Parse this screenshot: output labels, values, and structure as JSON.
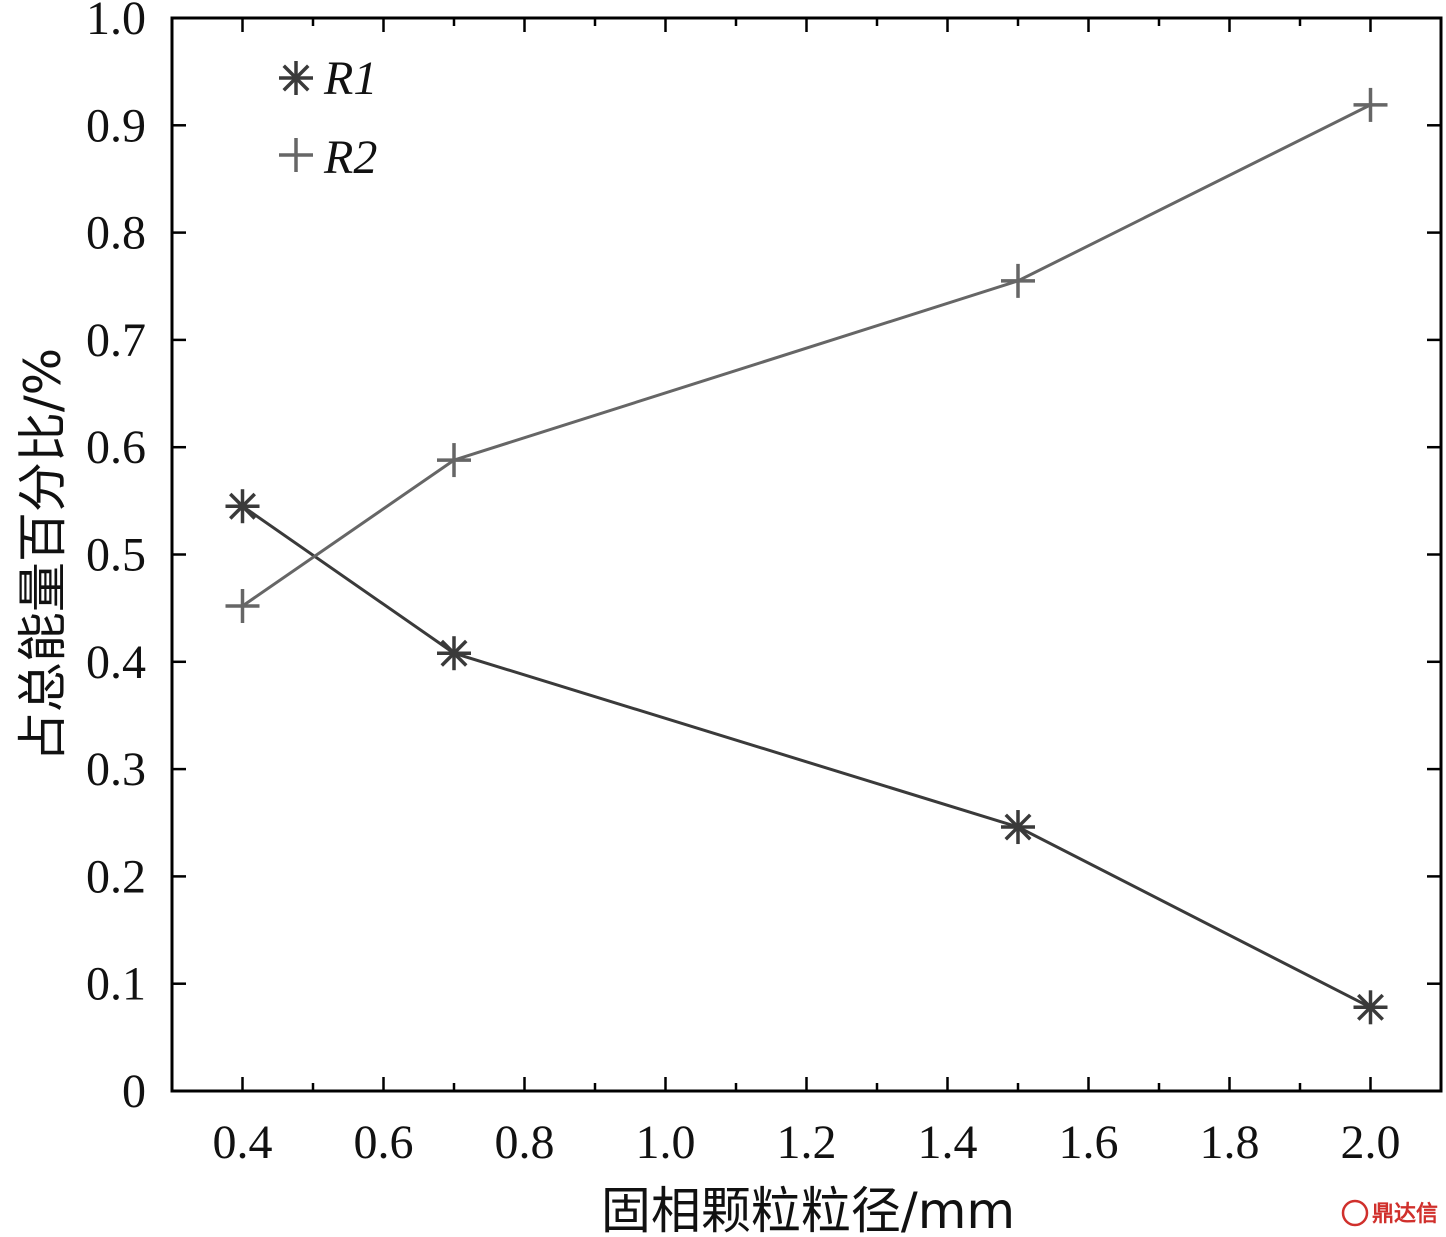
{
  "chart_data": {
    "type": "line",
    "xlabel": "固相颗粒粒径/mm",
    "ylabel": "占总能量百分比/%",
    "xlim": [
      0.3,
      2.1
    ],
    "ylim": [
      0,
      1.0
    ],
    "x_ticks": [
      "0.4",
      "0.6",
      "0.8",
      "1.0",
      "1.2",
      "1.4",
      "1.6",
      "1.8",
      "2.0"
    ],
    "y_ticks": [
      "0",
      "0.1",
      "0.2",
      "0.3",
      "0.4",
      "0.5",
      "0.6",
      "0.7",
      "0.8",
      "0.9",
      "1.0"
    ],
    "x": [
      0.4,
      0.7,
      1.5,
      2.0
    ],
    "series": [
      {
        "name": "R1",
        "marker": "asterisk",
        "color": "#3a3a3a",
        "values": [
          0.545,
          0.408,
          0.246,
          0.078
        ]
      },
      {
        "name": "R2",
        "marker": "plus",
        "color": "#666666",
        "values": [
          0.452,
          0.588,
          0.755,
          0.919
        ]
      }
    ],
    "legend": {
      "placement": "top-left",
      "items": [
        "R1",
        "R2"
      ]
    },
    "grid": false
  },
  "watermark": {
    "text": "鼎达信",
    "color": "#d0302c"
  }
}
